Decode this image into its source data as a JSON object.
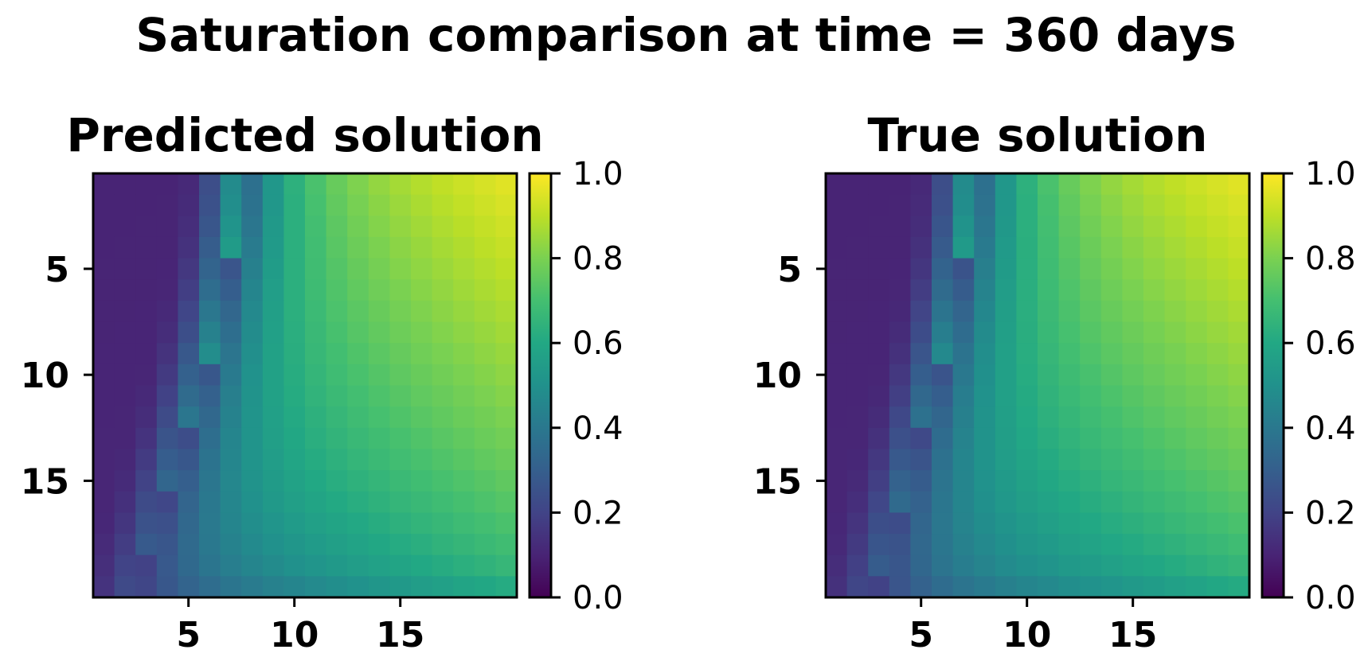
{
  "figure": {
    "title": "Saturation comparison at time = 360 days"
  },
  "chart_data": [
    {
      "type": "heatmap",
      "title": "Predicted solution",
      "grid_size": [
        20,
        20
      ],
      "xticks": [
        5,
        10,
        15
      ],
      "yticks": [
        5,
        10,
        15
      ],
      "colormap": "viridis",
      "colorbar": {
        "range": [
          0.0,
          1.0
        ],
        "ticks": [
          "0.0",
          "0.2",
          "0.4",
          "0.6",
          "0.8",
          "1.0"
        ]
      },
      "model": "approximate: front column ~6.5 at top, ~1.5 at bottom; values rise from ~0.08 behind front to ~0.97 at upper-right corner"
    },
    {
      "type": "heatmap",
      "title": "True solution",
      "grid_size": [
        20,
        20
      ],
      "xticks": [
        5,
        10,
        15
      ],
      "yticks": [
        5,
        10,
        15
      ],
      "colormap": "viridis",
      "colorbar": {
        "range": [
          0.0,
          1.0
        ],
        "ticks": [
          "0.0",
          "0.2",
          "0.4",
          "0.6",
          "0.8",
          "1.0"
        ]
      },
      "model": "approximate: front column ~6.5 at top, ~1.5 at bottom; values rise from ~0.08 behind front to ~0.97 at upper-right corner"
    }
  ]
}
